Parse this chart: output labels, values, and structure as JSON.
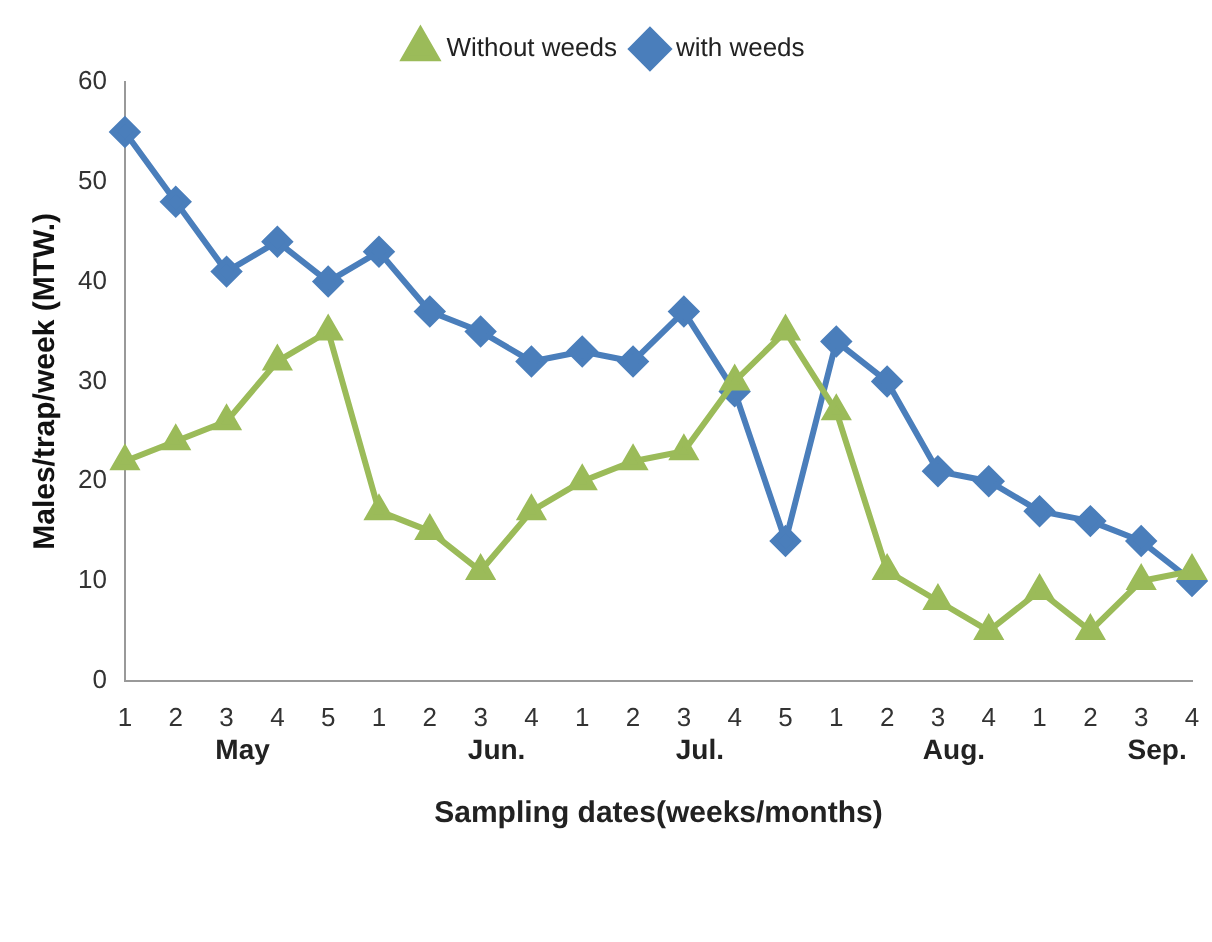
{
  "chart_data": {
    "type": "line",
    "xlabel": "Sampling dates(weeks/months)",
    "ylabel": "Males/trap/week (MTW.)",
    "categories": [
      "1",
      "2",
      "3",
      "4",
      "5",
      "1",
      "2",
      "3",
      "4",
      "1",
      "2",
      "3",
      "4",
      "5",
      "1",
      "2",
      "3",
      "4",
      "1",
      "2",
      "3",
      "4"
    ],
    "series": [
      {
        "name": "with weeds",
        "color": "#4a7ebb",
        "marker": "diamond",
        "values": [
          55,
          48,
          41,
          44,
          40,
          43,
          37,
          35,
          32,
          33,
          32,
          37,
          29,
          14,
          34,
          30,
          21,
          20,
          17,
          16,
          14,
          10
        ]
      },
      {
        "name": "Without weeds",
        "color": "#9bbb59",
        "marker": "triangle",
        "values": [
          22,
          24,
          26,
          32,
          35,
          17,
          15,
          11,
          17,
          20,
          22,
          23,
          30,
          35,
          27,
          11,
          8,
          5,
          9,
          5,
          10,
          11
        ]
      }
    ],
    "annotations": [
      "May",
      "Jun.",
      "Jul.",
      "Aug.",
      "Sep."
    ],
    "ylim": [
      0,
      60
    ],
    "yticks": [
      0,
      10,
      20,
      30,
      40,
      50,
      60
    ],
    "grid": false,
    "legend": "top",
    "line_style": "solid"
  }
}
